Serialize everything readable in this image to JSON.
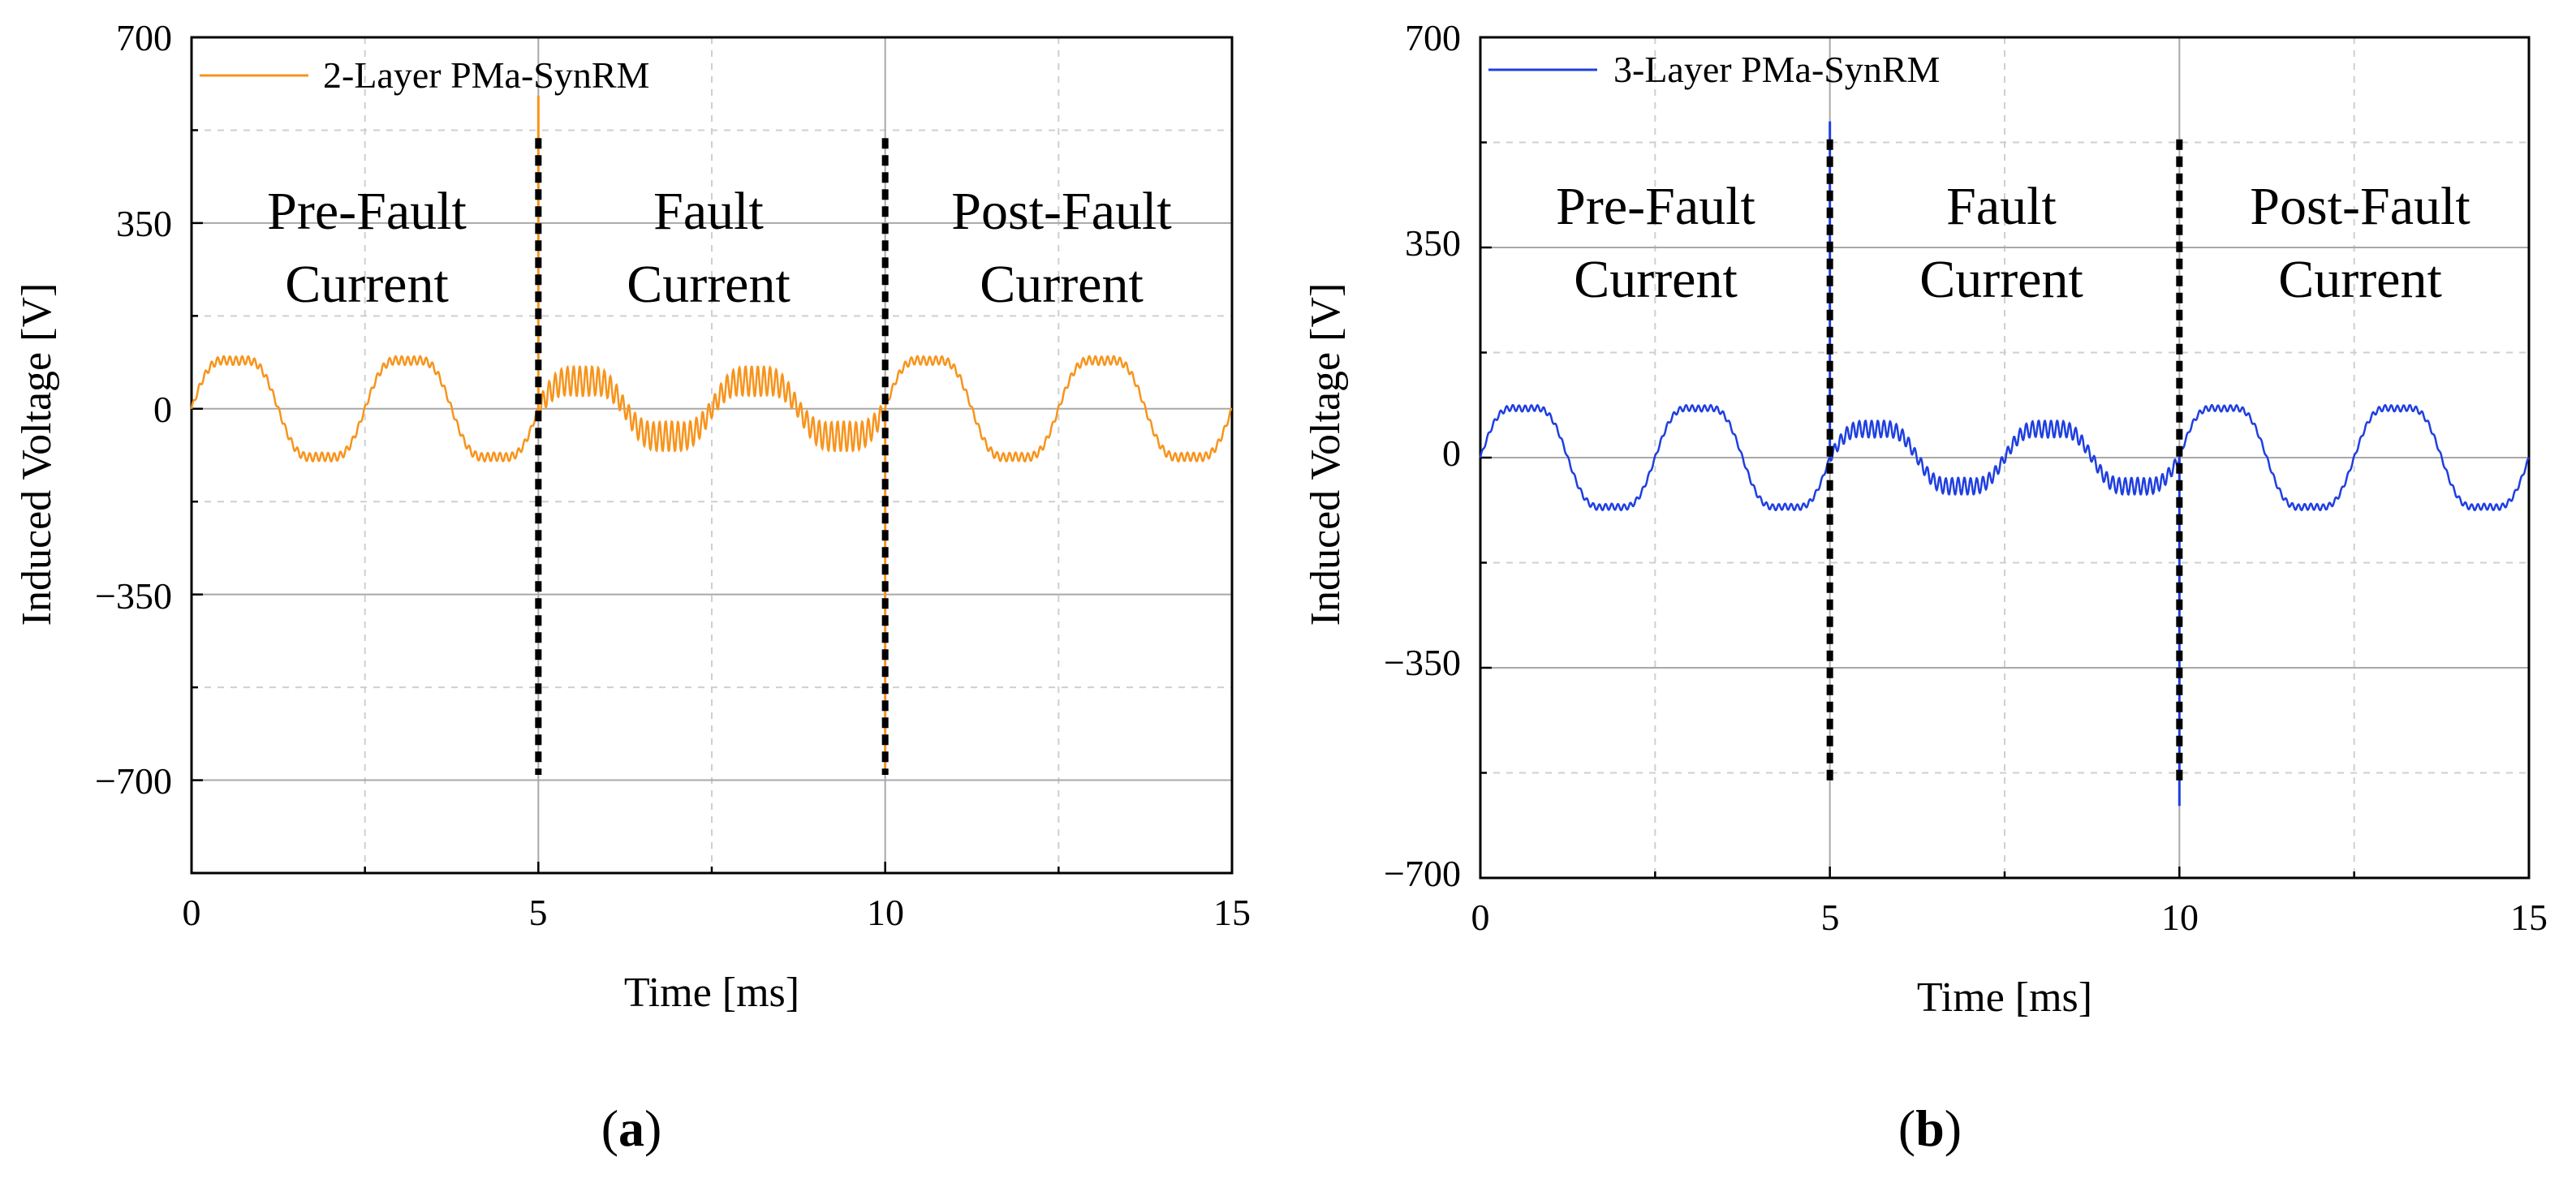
{
  "chart_data": [
    {
      "type": "line",
      "panel_label": "a",
      "xlabel": "Time [ms]",
      "ylabel": "Induced Voltage [V]",
      "xlim": [
        0,
        15
      ],
      "ylim": [
        -875,
        700
      ],
      "xticks": [
        "0",
        "5",
        "10",
        "15"
      ],
      "yticks": [
        "−700",
        "−350",
        "0",
        "350",
        "700"
      ],
      "legend": "2-Layer PMa-SynRM",
      "line_color": "#F7941D",
      "regions": [
        {
          "line1": "Pre-Fault",
          "line2": "Current",
          "x_center": 2.5
        },
        {
          "line1": "Fault",
          "line2": "Current",
          "x_center": 7.45
        },
        {
          "line1": "Post-Fault",
          "line2": "Current",
          "x_center": 12.6
        }
      ],
      "fault_markers": {
        "x": [
          5,
          10
        ],
        "y_range": [
          -690,
          510
        ]
      },
      "series": [
        {
          "name": "2-Layer PMa-SynRM",
          "segment": "pre-fault",
          "x_range": [
            0,
            5
          ],
          "amplitude": 105,
          "ripple": 8,
          "period_ms": 2.5
        },
        {
          "name": "2-Layer PMa-SynRM",
          "segment": "fault",
          "x_range": [
            5,
            10
          ],
          "amplitude": 60,
          "ripple": 28,
          "period_ms": 2.5
        },
        {
          "name": "2-Layer PMa-SynRM",
          "segment": "post-fault",
          "x_range": [
            10,
            15
          ],
          "amplitude": 105,
          "ripple": 8,
          "period_ms": 2.5
        }
      ],
      "spikes": [
        {
          "x": 5.0,
          "y": 590
        },
        {
          "x": 10.0,
          "y": -690
        }
      ]
    },
    {
      "type": "line",
      "panel_label": "b",
      "xlabel": "Time [ms]",
      "ylabel": "Induced Voltage [V]",
      "xlim": [
        0,
        15
      ],
      "ylim": [
        -700,
        700
      ],
      "xticks": [
        "0",
        "5",
        "10",
        "15"
      ],
      "yticks": [
        "−700",
        "−350",
        "0",
        "350",
        "700"
      ],
      "legend": "3-Layer PMa-SynRM",
      "line_color": "#1F3FE0",
      "regions": [
        {
          "line1": "Pre-Fault",
          "line2": "Current",
          "x_center": 2.5
        },
        {
          "line1": "Fault",
          "line2": "Current",
          "x_center": 7.45
        },
        {
          "line1": "Post-Fault",
          "line2": "Current",
          "x_center": 12.6
        }
      ],
      "fault_markers": {
        "x": [
          5,
          10
        ],
        "y_range": [
          -540,
          530
        ]
      },
      "series": [
        {
          "name": "3-Layer PMa-SynRM",
          "segment": "pre-fault",
          "x_range": [
            0,
            5
          ],
          "amplitude": 95,
          "ripple": 5,
          "period_ms": 2.5
        },
        {
          "name": "3-Layer PMa-SynRM",
          "segment": "fault",
          "x_range": [
            5,
            10
          ],
          "amplitude": 55,
          "ripple": 14,
          "period_ms": 2.5
        },
        {
          "name": "3-Layer PMa-SynRM",
          "segment": "post-fault",
          "x_range": [
            10,
            15
          ],
          "amplitude": 95,
          "ripple": 5,
          "period_ms": 2.5
        }
      ],
      "spikes": [
        {
          "x": 5.0,
          "y": 560
        },
        {
          "x": 10.0,
          "y": -580
        }
      ]
    }
  ]
}
